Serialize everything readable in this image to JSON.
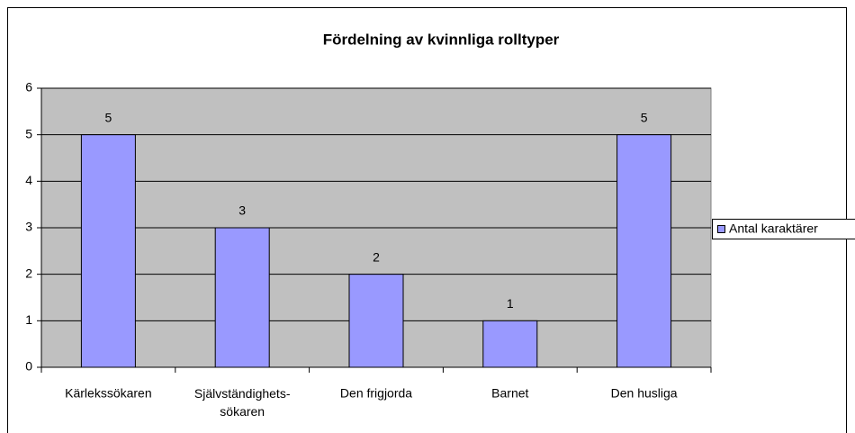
{
  "chart_data": {
    "type": "bar",
    "title": "Fördelning av kvinnliga rolltyper",
    "categories": [
      "Kärlekssökaren",
      "Självständighets-sökaren",
      "Den frigjorda",
      "Barnet",
      "Den husliga"
    ],
    "series": [
      {
        "name": "Antal karaktärer",
        "color": "#9999ff",
        "values": [
          5,
          3,
          2,
          1,
          5
        ]
      }
    ],
    "ylim": [
      0,
      6
    ],
    "yticks": [
      0,
      1,
      2,
      3,
      4,
      5,
      6
    ],
    "grid": true,
    "legend": "right"
  }
}
